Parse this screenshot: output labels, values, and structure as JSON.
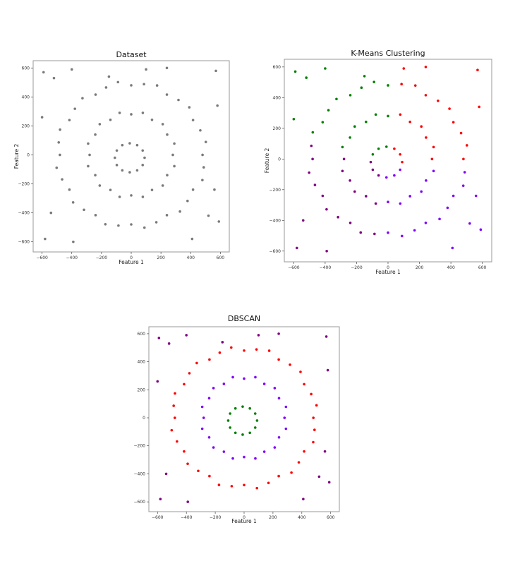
{
  "colors": {
    "dataset": "#7a7a7a",
    "kmeans": [
      "#008000",
      "#ff0000",
      "#7f00ff",
      "#800080"
    ],
    "dbscan": [
      "#ff0000",
      "#7f00ff",
      "#008000",
      "#800080"
    ]
  },
  "chart_data": [
    {
      "id": "dataset",
      "type": "scatter",
      "title": "Dataset",
      "xlabel": "Feature 1",
      "ylabel": "Feature 2",
      "xlim": [
        -660,
        660
      ],
      "ylim": [
        -670,
        650
      ],
      "xticks": [
        -600,
        -400,
        -200,
        0,
        200,
        400,
        600
      ],
      "yticks": [
        -600,
        -400,
        -200,
        0,
        200,
        400,
        600
      ],
      "grid": false,
      "color_by": "none"
    },
    {
      "id": "kmeans",
      "type": "scatter",
      "title": "K-Means Clustering",
      "xlabel": "Feature 1",
      "ylabel": "Feature 2",
      "xlim": [
        -660,
        660
      ],
      "ylim": [
        -670,
        650
      ],
      "xticks": [
        -600,
        -400,
        -200,
        0,
        200,
        400,
        600
      ],
      "yticks": [
        -600,
        -400,
        -200,
        0,
        200,
        400,
        600
      ],
      "grid": false,
      "color_by": "kmeans"
    },
    {
      "id": "dbscan",
      "type": "scatter",
      "title": "DBSCAN",
      "xlabel": "Feature 1",
      "ylabel": "",
      "xlim": [
        -660,
        660
      ],
      "ylim": [
        -670,
        650
      ],
      "xticks": [
        -600,
        -400,
        -200,
        0,
        200,
        400,
        600
      ],
      "yticks": [
        -600,
        -400,
        -200,
        0,
        200,
        400,
        600
      ],
      "grid": false,
      "color_by": "dbscan"
    }
  ],
  "points_format": [
    "feature_1",
    "feature_2",
    "kmeans_cluster",
    "dbscan_cluster"
  ],
  "points": [
    [
      480,
      0,
      1,
      0
    ],
    [
      502,
      89,
      1,
      0
    ],
    [
      465,
      169,
      1,
      0
    ],
    [
      416,
      240,
      1,
      0
    ],
    [
      391,
      328,
      1,
      0
    ],
    [
      318,
      379,
      1,
      0
    ],
    [
      240,
      416,
      1,
      0
    ],
    [
      174,
      479,
      1,
      0
    ],
    [
      86,
      488,
      1,
      0
    ],
    [
      0,
      480,
      0,
      0
    ],
    [
      -89,
      502,
      0,
      0
    ],
    [
      -169,
      465,
      0,
      0
    ],
    [
      -240,
      416,
      0,
      0
    ],
    [
      -328,
      391,
      0,
      0
    ],
    [
      -379,
      318,
      0,
      0
    ],
    [
      -416,
      240,
      0,
      0
    ],
    [
      -479,
      174,
      0,
      0
    ],
    [
      -488,
      86,
      3,
      0
    ],
    [
      -480,
      0,
      3,
      0
    ],
    [
      -502,
      -89,
      3,
      0
    ],
    [
      -465,
      -169,
      3,
      0
    ],
    [
      -416,
      -240,
      3,
      0
    ],
    [
      -391,
      -328,
      3,
      0
    ],
    [
      -318,
      -379,
      3,
      0
    ],
    [
      -240,
      -416,
      3,
      0
    ],
    [
      -174,
      -479,
      3,
      0
    ],
    [
      -86,
      -488,
      3,
      0
    ],
    [
      0,
      -480,
      2,
      0
    ],
    [
      89,
      -502,
      2,
      0
    ],
    [
      169,
      -465,
      2,
      0
    ],
    [
      240,
      -416,
      2,
      0
    ],
    [
      328,
      -391,
      2,
      0
    ],
    [
      379,
      -318,
      2,
      0
    ],
    [
      416,
      -240,
      2,
      0
    ],
    [
      479,
      -174,
      2,
      0
    ],
    [
      488,
      -86,
      2,
      0
    ],
    [
      280,
      0,
      1,
      1
    ],
    [
      290,
      78,
      1,
      1
    ],
    [
      242,
      140,
      1,
      1
    ],
    [
      212,
      212,
      1,
      1
    ],
    [
      140,
      242,
      1,
      1
    ],
    [
      78,
      290,
      1,
      1
    ],
    [
      0,
      280,
      0,
      1
    ],
    [
      -78,
      290,
      0,
      1
    ],
    [
      -140,
      242,
      0,
      1
    ],
    [
      -212,
      212,
      0,
      1
    ],
    [
      -242,
      140,
      0,
      1
    ],
    [
      -290,
      78,
      0,
      1
    ],
    [
      -280,
      0,
      3,
      1
    ],
    [
      -290,
      -78,
      3,
      1
    ],
    [
      -242,
      -140,
      3,
      1
    ],
    [
      -212,
      -212,
      3,
      1
    ],
    [
      -140,
      -242,
      3,
      1
    ],
    [
      -78,
      -290,
      3,
      1
    ],
    [
      0,
      -280,
      2,
      1
    ],
    [
      78,
      -290,
      2,
      1
    ],
    [
      140,
      -242,
      2,
      1
    ],
    [
      212,
      -212,
      2,
      1
    ],
    [
      242,
      -140,
      2,
      1
    ],
    [
      290,
      -78,
      2,
      1
    ],
    [
      90,
      -20,
      1,
      2
    ],
    [
      77,
      30,
      1,
      2
    ],
    [
      40,
      67,
      1,
      2
    ],
    [
      -10,
      80,
      0,
      2
    ],
    [
      -60,
      67,
      0,
      2
    ],
    [
      -97,
      30,
      0,
      2
    ],
    [
      -110,
      -20,
      3,
      2
    ],
    [
      -97,
      -70,
      3,
      2
    ],
    [
      -60,
      -107,
      3,
      2
    ],
    [
      -10,
      -120,
      2,
      2
    ],
    [
      40,
      -107,
      2,
      2
    ],
    [
      77,
      -70,
      2,
      2
    ],
    [
      -590,
      570,
      0,
      3
    ],
    [
      -520,
      530,
      0,
      3
    ],
    [
      -600,
      260,
      0,
      3
    ],
    [
      -580,
      -580,
      3,
      3
    ],
    [
      -540,
      -400,
      3,
      3
    ],
    [
      570,
      580,
      1,
      3
    ],
    [
      580,
      340,
      1,
      3
    ],
    [
      590,
      -460,
      2,
      3
    ],
    [
      410,
      -580,
      2,
      3
    ],
    [
      -390,
      -600,
      3,
      3
    ],
    [
      560,
      -240,
      2,
      3
    ],
    [
      240,
      600,
      1,
      3
    ],
    [
      -400,
      590,
      0,
      3
    ],
    [
      520,
      -420,
      2,
      3
    ],
    [
      100,
      590,
      1,
      3
    ],
    [
      -150,
      540,
      0,
      3
    ]
  ]
}
